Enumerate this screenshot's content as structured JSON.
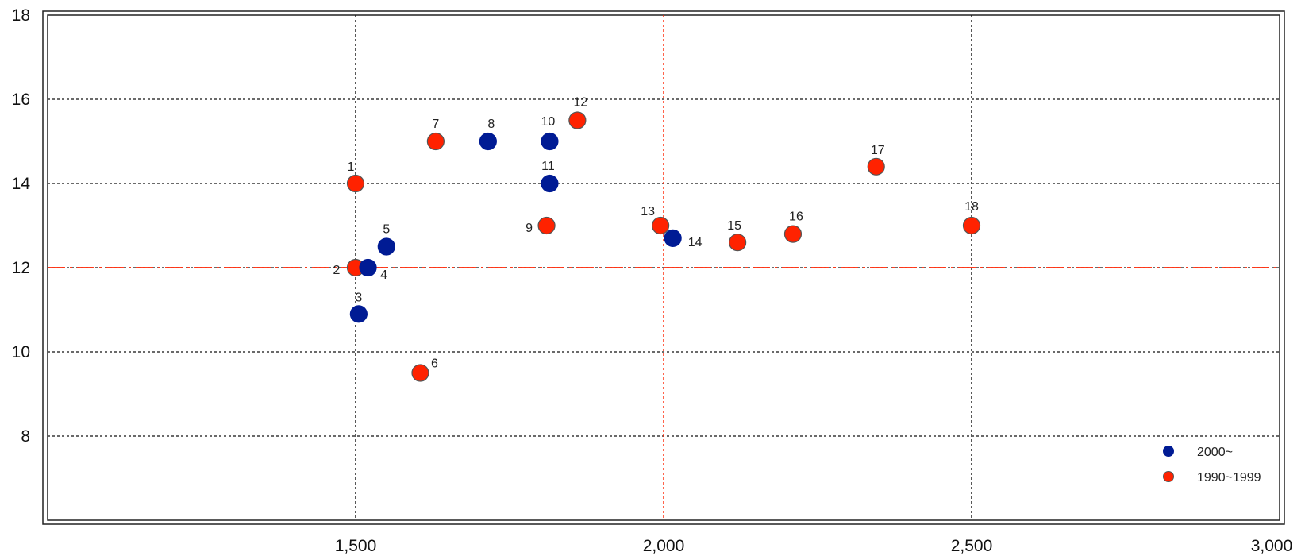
{
  "chart_data": {
    "type": "scatter",
    "title": "",
    "xlabel": "",
    "ylabel": "",
    "xlim": [
      1000,
      3000
    ],
    "ylim": [
      6,
      18
    ],
    "x_ticks": [
      1500,
      2000,
      2500,
      3000
    ],
    "x_tick_labels": [
      "1,500",
      "2,000",
      "2,500",
      "3,000"
    ],
    "y_ticks": [
      8,
      10,
      12,
      14,
      16,
      18
    ],
    "y_tick_labels": [
      "8",
      "10",
      "12",
      "14",
      "16",
      "18"
    ],
    "grid": true,
    "reference_lines": {
      "vertical_x": 2000,
      "horizontal_y": 12,
      "color": "#ff2200"
    },
    "legend_position": "bottom-right",
    "series": [
      {
        "name": "2000~",
        "color": "#001b94",
        "points": [
          {
            "label": "3",
            "x": 1505,
            "y": 10.9
          },
          {
            "label": "4",
            "x": 1520,
            "y": 12.0
          },
          {
            "label": "5",
            "x": 1550,
            "y": 12.5
          },
          {
            "label": "8",
            "x": 1715,
            "y": 15.0
          },
          {
            "label": "10",
            "x": 1815,
            "y": 15.0
          },
          {
            "label": "11",
            "x": 1815,
            "y": 14.0
          },
          {
            "label": "14",
            "x": 2015,
            "y": 12.7
          }
        ]
      },
      {
        "name": "1990~1999",
        "color": "#ff2200",
        "points": [
          {
            "label": "1",
            "x": 1500,
            "y": 14.0
          },
          {
            "label": "2",
            "x": 1500,
            "y": 12.0
          },
          {
            "label": "6",
            "x": 1605,
            "y": 9.5
          },
          {
            "label": "7",
            "x": 1630,
            "y": 15.0
          },
          {
            "label": "9",
            "x": 1810,
            "y": 13.0
          },
          {
            "label": "12",
            "x": 1860,
            "y": 15.5
          },
          {
            "label": "13",
            "x": 1995,
            "y": 13.0
          },
          {
            "label": "15",
            "x": 2120,
            "y": 12.6
          },
          {
            "label": "16",
            "x": 2210,
            "y": 12.8
          },
          {
            "label": "17",
            "x": 2345,
            "y": 14.4
          },
          {
            "label": "18",
            "x": 2500,
            "y": 13.0
          }
        ]
      }
    ]
  }
}
